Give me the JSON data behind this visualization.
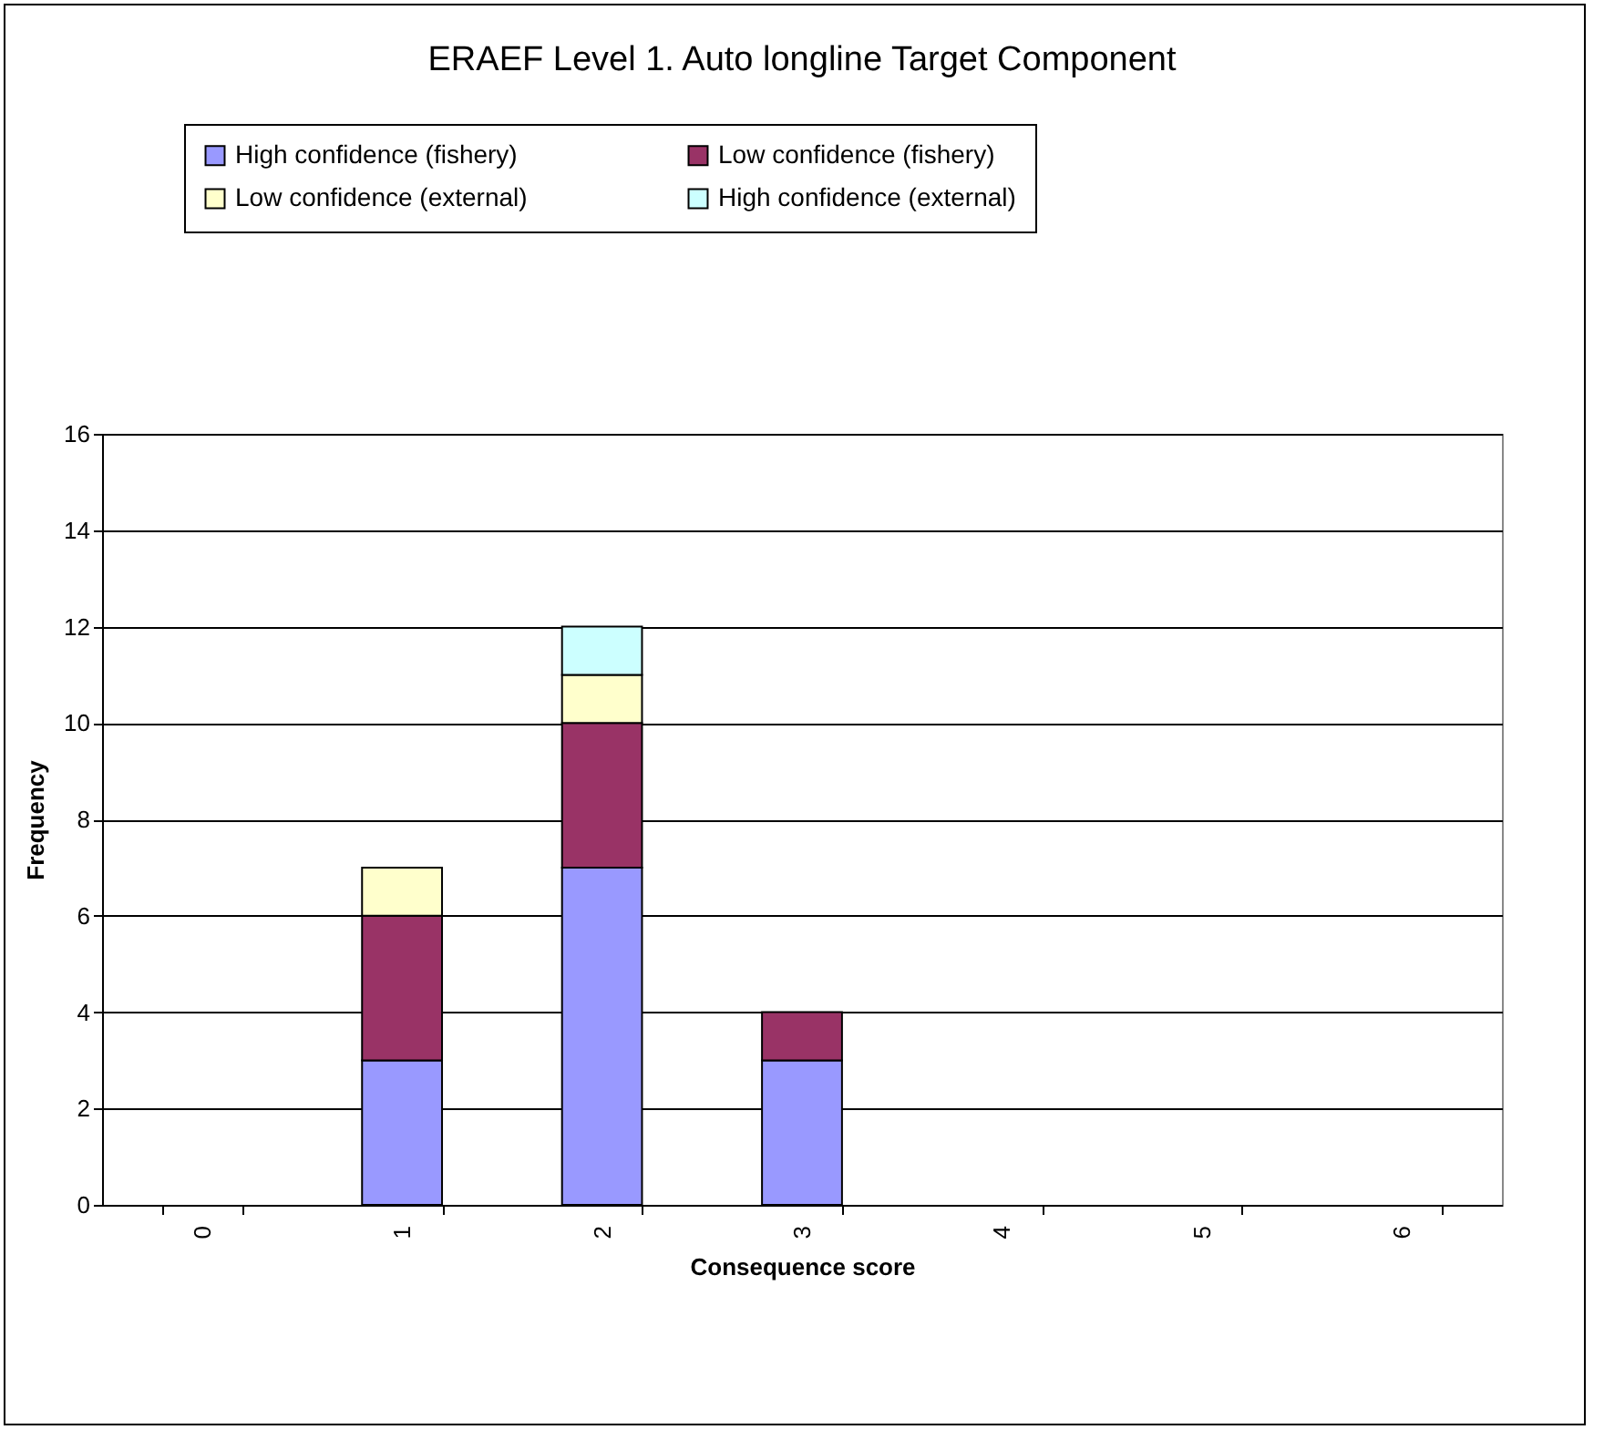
{
  "chart_data": {
    "type": "bar",
    "title": "ERAEF Level 1. Auto longline Target Component",
    "xlabel": "Consequence score",
    "ylabel": "Frequency",
    "categories": [
      "0",
      "1",
      "2",
      "3",
      "4",
      "5",
      "6"
    ],
    "stacked": true,
    "series": [
      {
        "name": "High confidence (fishery)",
        "color": "#9999ff",
        "values": [
          null,
          3,
          7,
          3,
          null,
          null,
          null
        ]
      },
      {
        "name": "Low confidence (fishery)",
        "color": "#993366",
        "values": [
          null,
          3,
          3,
          1,
          null,
          null,
          null
        ]
      },
      {
        "name": "Low confidence (external)",
        "color": "#ffffcc",
        "values": [
          null,
          1,
          1,
          null,
          null,
          null,
          null
        ]
      },
      {
        "name": "High confidence (external)",
        "color": "#ccffff",
        "values": [
          null,
          null,
          1,
          null,
          null,
          null,
          null
        ]
      }
    ],
    "ylim": [
      0,
      16
    ],
    "yticks": [
      0,
      2,
      4,
      6,
      8,
      10,
      12,
      14,
      16
    ],
    "grid": "y",
    "legend": "top"
  }
}
